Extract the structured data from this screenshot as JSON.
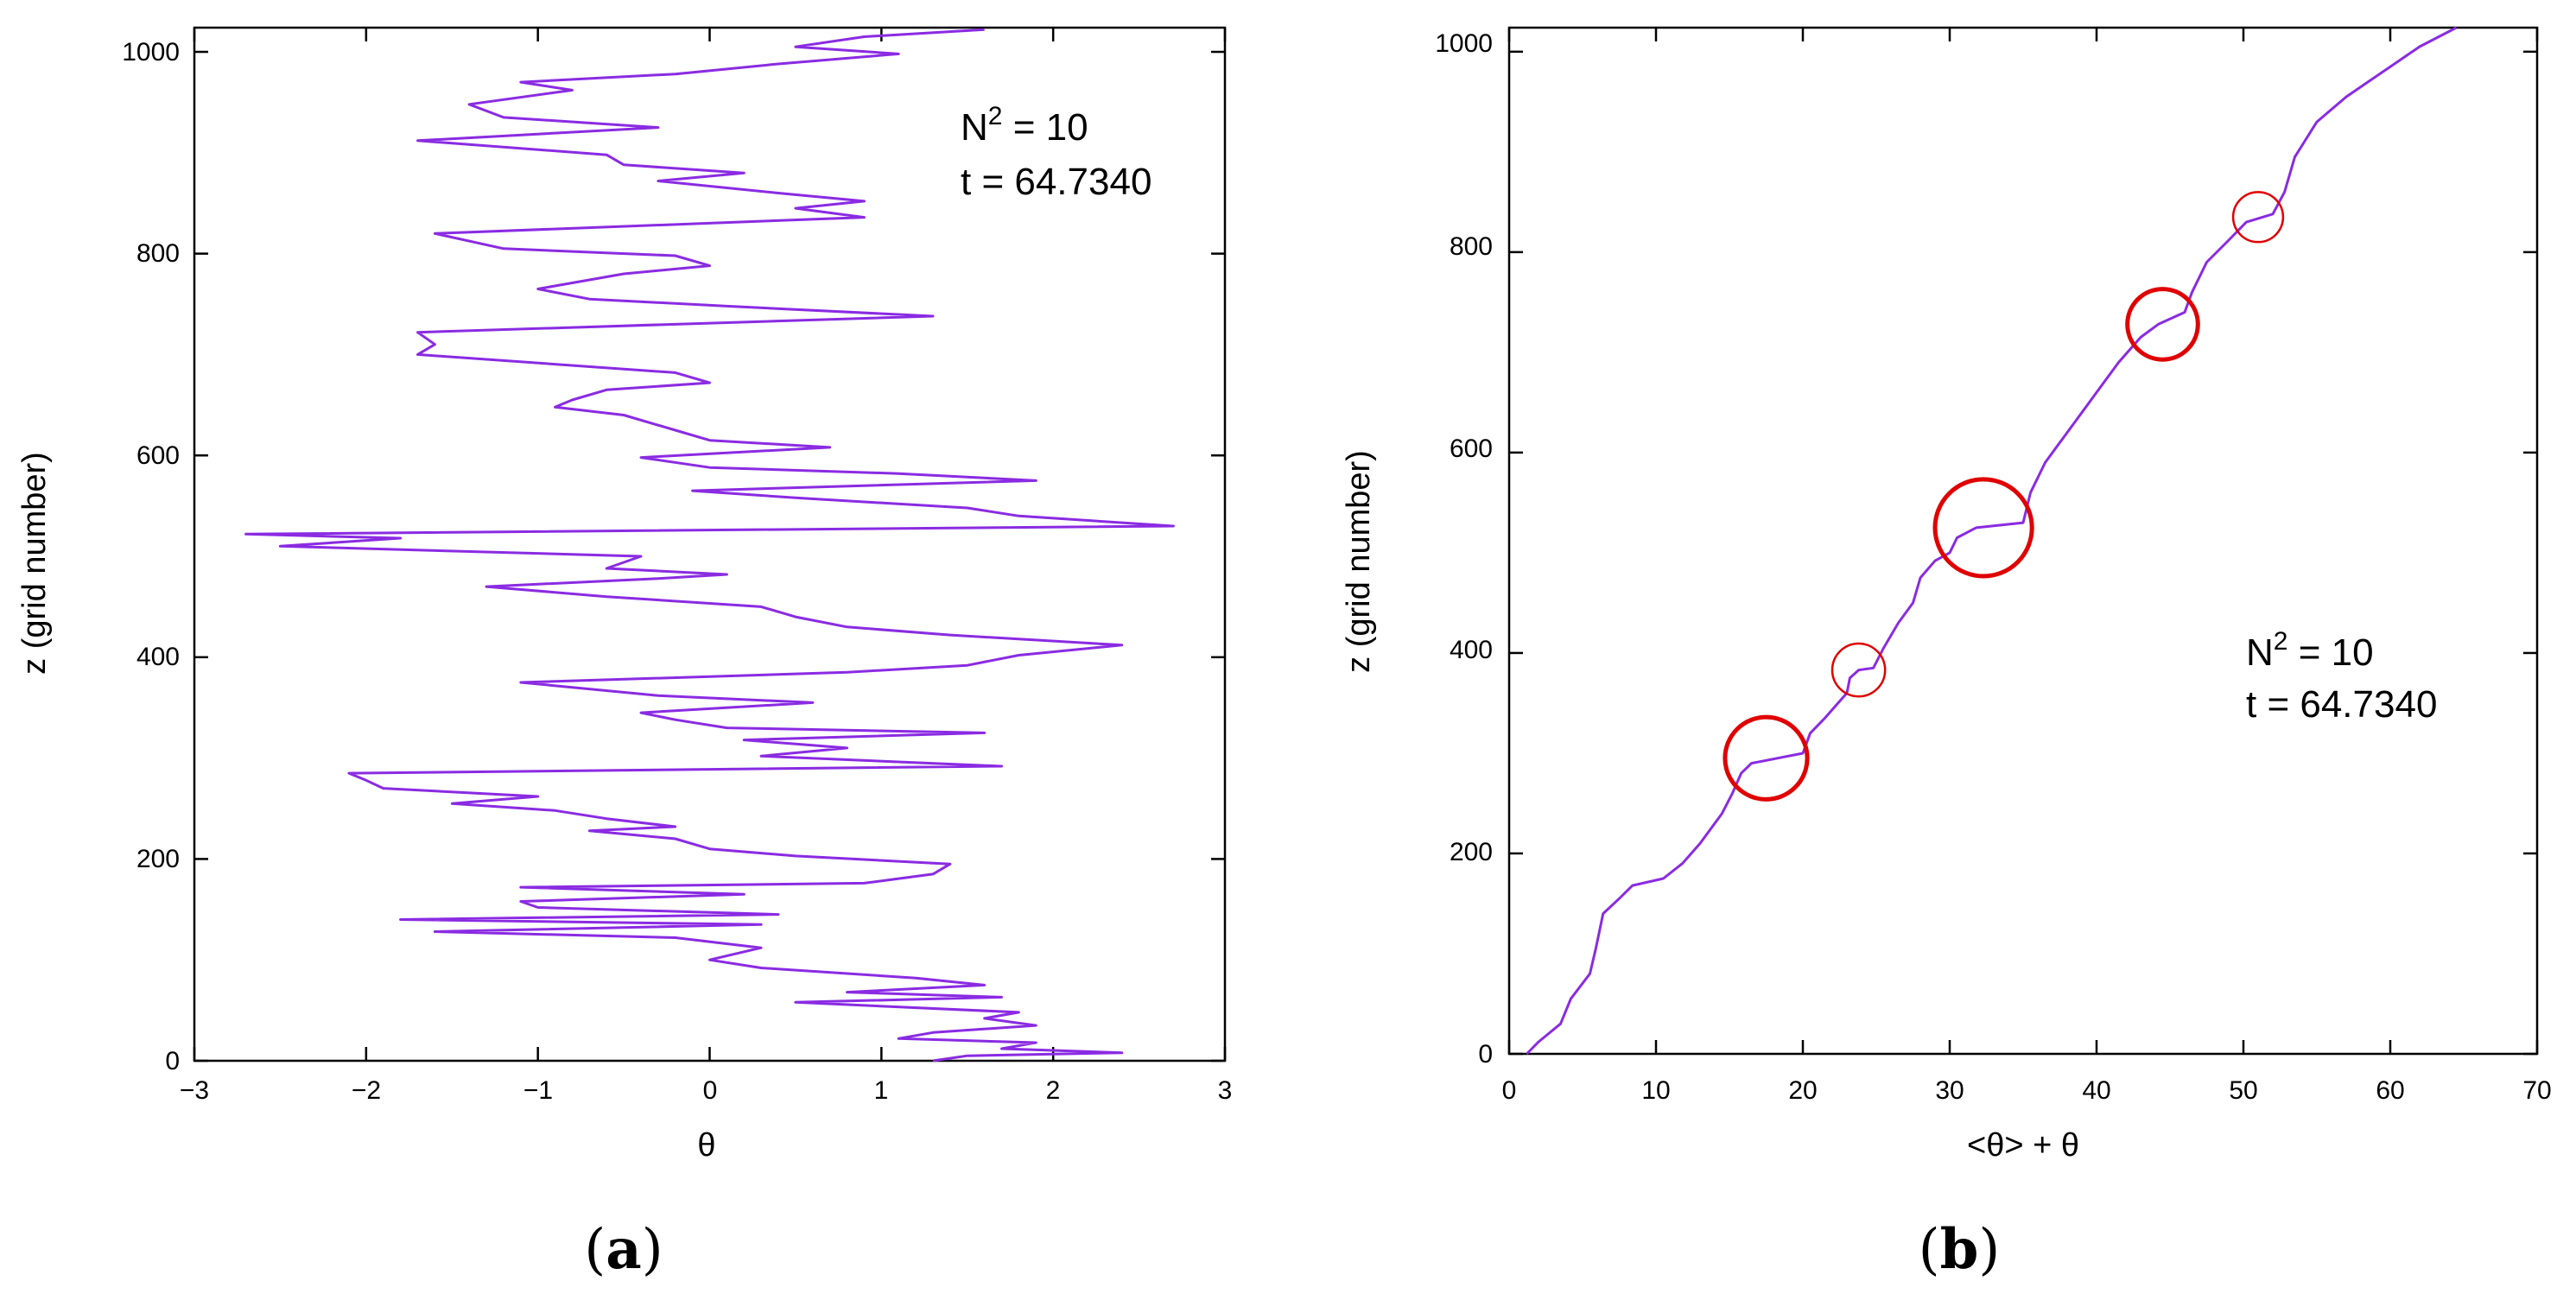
{
  "chart_data": [
    {
      "type": "line",
      "panel_label": "a",
      "xlabel": "θ",
      "ylabel": "z (grid number)",
      "xlim": [
        -3,
        3
      ],
      "ylim": [
        0,
        1024
      ],
      "xticks": [
        -3,
        -2,
        -1,
        0,
        1,
        2,
        3
      ],
      "yticks": [
        0,
        200,
        400,
        600,
        800,
        1000
      ],
      "xtick_labels": [
        "−3",
        "−2",
        "−1",
        "0",
        "1",
        "2",
        "3"
      ],
      "ytick_labels": [
        "0",
        "200",
        "400",
        "600",
        "800",
        "1000"
      ],
      "annotation": {
        "line1_base": "N",
        "line1_sup": "2",
        "line1_rest": " = 10",
        "line2": "t = 64.7340"
      },
      "line_color": "#8a2be2",
      "series": [
        {
          "points": [
            [
              1.3,
              0
            ],
            [
              1.5,
              5
            ],
            [
              2.4,
              8
            ],
            [
              1.7,
              12
            ],
            [
              1.9,
              18
            ],
            [
              1.1,
              22
            ],
            [
              1.3,
              28
            ],
            [
              1.9,
              35
            ],
            [
              1.6,
              42
            ],
            [
              1.8,
              48
            ],
            [
              0.5,
              58
            ],
            [
              1.7,
              63
            ],
            [
              0.8,
              68
            ],
            [
              1.6,
              75
            ],
            [
              1.2,
              82
            ],
            [
              0.3,
              92
            ],
            [
              0.0,
              100
            ],
            [
              0.3,
              112
            ],
            [
              -0.2,
              122
            ],
            [
              -1.6,
              128
            ],
            [
              0.3,
              135
            ],
            [
              -1.8,
              140
            ],
            [
              0.4,
              145
            ],
            [
              -1.0,
              152
            ],
            [
              -1.1,
              158
            ],
            [
              0.2,
              165
            ],
            [
              -1.1,
              172
            ],
            [
              0.9,
              176
            ],
            [
              1.3,
              185
            ],
            [
              1.4,
              195
            ],
            [
              0.5,
              203
            ],
            [
              0.0,
              210
            ],
            [
              -0.2,
              220
            ],
            [
              -0.7,
              228
            ],
            [
              -0.2,
              232
            ],
            [
              -0.6,
              240
            ],
            [
              -0.9,
              248
            ],
            [
              -1.5,
              255
            ],
            [
              -1.0,
              262
            ],
            [
              -1.9,
              270
            ],
            [
              -2.0,
              278
            ],
            [
              -2.1,
              285
            ],
            [
              1.7,
              292
            ],
            [
              0.3,
              302
            ],
            [
              0.8,
              310
            ],
            [
              0.2,
              318
            ],
            [
              1.6,
              325
            ],
            [
              0.1,
              330
            ],
            [
              -0.2,
              338
            ],
            [
              -0.4,
              345
            ],
            [
              0.6,
              355
            ],
            [
              -0.3,
              362
            ],
            [
              -1.1,
              375
            ],
            [
              0.8,
              385
            ],
            [
              1.5,
              392
            ],
            [
              1.8,
              402
            ],
            [
              2.4,
              412
            ],
            [
              1.4,
              422
            ],
            [
              0.8,
              430
            ],
            [
              0.5,
              440
            ],
            [
              0.3,
              450
            ],
            [
              -0.6,
              460
            ],
            [
              -1.3,
              470
            ],
            [
              -0.3,
              478
            ],
            [
              0.1,
              482
            ],
            [
              -0.6,
              488
            ],
            [
              -0.4,
              500
            ],
            [
              -2.5,
              510
            ],
            [
              -1.8,
              518
            ],
            [
              -2.7,
              522
            ],
            [
              2.7,
              530
            ],
            [
              1.8,
              540
            ],
            [
              1.5,
              548
            ],
            [
              0.5,
              558
            ],
            [
              -0.1,
              565
            ],
            [
              1.9,
              575
            ],
            [
              1.1,
              582
            ],
            [
              0.0,
              588
            ],
            [
              -0.4,
              598
            ],
            [
              0.7,
              608
            ],
            [
              0.0,
              615
            ],
            [
              -0.2,
              625
            ],
            [
              -0.5,
              640
            ],
            [
              -0.9,
              648
            ],
            [
              -0.8,
              655
            ],
            [
              -0.6,
              665
            ],
            [
              0.0,
              672
            ],
            [
              -0.2,
              682
            ],
            [
              -1.7,
              700
            ],
            [
              -1.6,
              710
            ],
            [
              -1.7,
              722
            ],
            [
              1.3,
              738
            ],
            [
              0.1,
              748
            ],
            [
              -0.7,
              755
            ],
            [
              -1.0,
              765
            ],
            [
              -0.5,
              780
            ],
            [
              0.0,
              788
            ],
            [
              -0.2,
              798
            ],
            [
              -1.2,
              805
            ],
            [
              -1.6,
              820
            ],
            [
              0.9,
              836
            ],
            [
              0.5,
              845
            ],
            [
              0.9,
              852
            ],
            [
              0.4,
              860
            ],
            [
              -0.3,
              872
            ],
            [
              0.2,
              880
            ],
            [
              -0.5,
              888
            ],
            [
              -0.6,
              898
            ],
            [
              -1.7,
              912
            ],
            [
              -0.3,
              925
            ],
            [
              -1.2,
              935
            ],
            [
              -1.4,
              948
            ],
            [
              -0.8,
              962
            ],
            [
              -1.1,
              970
            ],
            [
              -0.2,
              978
            ],
            [
              0.4,
              988
            ],
            [
              1.1,
              998
            ],
            [
              0.5,
              1005
            ],
            [
              0.9,
              1015
            ],
            [
              1.6,
              1022
            ]
          ]
        }
      ]
    },
    {
      "type": "line",
      "panel_label": "b",
      "xlabel": "<θ> + θ",
      "ylabel": "z (grid number)",
      "xlim": [
        0,
        70
      ],
      "ylim": [
        0,
        1024
      ],
      "xticks": [
        0,
        10,
        20,
        30,
        40,
        50,
        60,
        70
      ],
      "yticks": [
        0,
        200,
        400,
        600,
        800,
        1000
      ],
      "xtick_labels": [
        "0",
        "10",
        "20",
        "30",
        "40",
        "50",
        "60",
        "70"
      ],
      "ytick_labels": [
        "0",
        "200",
        "400",
        "600",
        "800",
        "1000"
      ],
      "annotation": {
        "line1_base": "N",
        "line1_sup": "2",
        "line1_rest": " = 10",
        "line2": "t = 64.7340"
      },
      "line_color": "#8a2be2",
      "circle_color": "#e00000",
      "series": [
        {
          "points": [
            [
              1.2,
              0
            ],
            [
              2.0,
              12
            ],
            [
              3.5,
              30
            ],
            [
              4.2,
              55
            ],
            [
              5.5,
              80
            ],
            [
              5.9,
              105
            ],
            [
              6.4,
              140
            ],
            [
              7.5,
              155
            ],
            [
              8.4,
              168
            ],
            [
              10.5,
              175
            ],
            [
              11.8,
              190
            ],
            [
              13.0,
              210
            ],
            [
              14.5,
              240
            ],
            [
              15.2,
              260
            ],
            [
              15.8,
              280
            ],
            [
              16.5,
              290
            ],
            [
              20.0,
              300
            ],
            [
              20.5,
              320
            ],
            [
              21.5,
              335
            ],
            [
              23.0,
              360
            ],
            [
              23.2,
              375
            ],
            [
              23.8,
              383
            ],
            [
              24.8,
              385
            ],
            [
              25.5,
              405
            ],
            [
              26.5,
              430
            ],
            [
              27.5,
              450
            ],
            [
              28.0,
              475
            ],
            [
              29.0,
              492
            ],
            [
              30.0,
              500
            ],
            [
              30.5,
              515
            ],
            [
              31.8,
              525
            ],
            [
              35.0,
              530
            ],
            [
              35.5,
              560
            ],
            [
              36.5,
              590
            ],
            [
              37.5,
              610
            ],
            [
              38.5,
              630
            ],
            [
              40.0,
              660
            ],
            [
              41.5,
              690
            ],
            [
              43.0,
              715
            ],
            [
              44.2,
              728
            ],
            [
              46.0,
              740
            ],
            [
              46.5,
              760
            ],
            [
              47.5,
              790
            ],
            [
              49.0,
              812
            ],
            [
              50.2,
              830
            ],
            [
              52.0,
              838
            ],
            [
              52.8,
              860
            ],
            [
              53.5,
              895
            ],
            [
              55.0,
              930
            ],
            [
              57.0,
              955
            ],
            [
              58.5,
              970
            ],
            [
              60.0,
              985
            ],
            [
              62.0,
              1005
            ],
            [
              64.5,
              1024
            ]
          ]
        }
      ],
      "circles": [
        {
          "x": 17.5,
          "y": 295,
          "r": 2.8,
          "heavy": true
        },
        {
          "x": 23.8,
          "y": 383,
          "r": 1.8,
          "heavy": false
        },
        {
          "x": 32.3,
          "y": 525,
          "r": 3.3,
          "heavy": true
        },
        {
          "x": 44.5,
          "y": 728,
          "r": 2.4,
          "heavy": true
        },
        {
          "x": 51.0,
          "y": 835,
          "r": 1.7,
          "heavy": false
        }
      ]
    }
  ]
}
